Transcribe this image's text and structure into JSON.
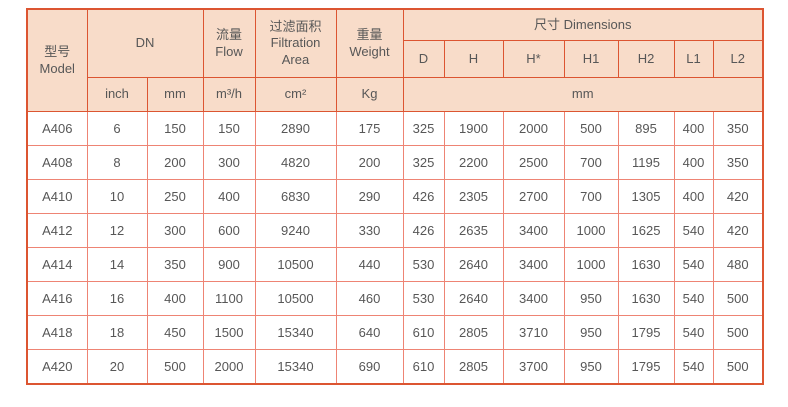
{
  "colors": {
    "page_bg": "#ffffff",
    "header_bg": "#f8dcc9",
    "header_border": "#dc5531",
    "data_border": "#ee8474",
    "text": "#575757"
  },
  "header": {
    "model_zh": "型号",
    "model_en": "Model",
    "dn": "DN",
    "flow_zh": "流量",
    "flow_en": "Flow",
    "filtration_zh": "过滤面积",
    "filtration_en": "Filtration Area",
    "weight_zh": "重量",
    "weight_en": "Weight",
    "dimensions": "尺寸 Dimensions",
    "dim_cols": [
      "D",
      "H",
      "H*",
      "H1",
      "H2",
      "L1",
      "L2"
    ],
    "units": {
      "inch": "inch",
      "mm": "mm",
      "flow": "m³/h",
      "area": "cm²",
      "weight": "Kg",
      "dim_mm": "mm"
    }
  },
  "rows": [
    {
      "model": "A406",
      "inch": "6",
      "mm": "150",
      "flow": "150",
      "area": "2890",
      "weight": "175",
      "d": "325",
      "h": "1900",
      "h_star": "2000",
      "h1": "500",
      "h2": "895",
      "l1": "400",
      "l2": "350"
    },
    {
      "model": "A408",
      "inch": "8",
      "mm": "200",
      "flow": "300",
      "area": "4820",
      "weight": "200",
      "d": "325",
      "h": "2200",
      "h_star": "2500",
      "h1": "700",
      "h2": "1195",
      "l1": "400",
      "l2": "350"
    },
    {
      "model": "A410",
      "inch": "10",
      "mm": "250",
      "flow": "400",
      "area": "6830",
      "weight": "290",
      "d": "426",
      "h": "2305",
      "h_star": "2700",
      "h1": "700",
      "h2": "1305",
      "l1": "400",
      "l2": "420"
    },
    {
      "model": "A412",
      "inch": "12",
      "mm": "300",
      "flow": "600",
      "area": "9240",
      "weight": "330",
      "d": "426",
      "h": "2635",
      "h_star": "3400",
      "h1": "1000",
      "h2": "1625",
      "l1": "540",
      "l2": "420"
    },
    {
      "model": "A414",
      "inch": "14",
      "mm": "350",
      "flow": "900",
      "area": "10500",
      "weight": "440",
      "d": "530",
      "h": "2640",
      "h_star": "3400",
      "h1": "1000",
      "h2": "1630",
      "l1": "540",
      "l2": "480"
    },
    {
      "model": "A416",
      "inch": "16",
      "mm": "400",
      "flow": "1100",
      "area": "10500",
      "weight": "460",
      "d": "530",
      "h": "2640",
      "h_star": "3400",
      "h1": "950",
      "h2": "1630",
      "l1": "540",
      "l2": "500"
    },
    {
      "model": "A418",
      "inch": "18",
      "mm": "450",
      "flow": "1500",
      "area": "15340",
      "weight": "640",
      "d": "610",
      "h": "2805",
      "h_star": "3710",
      "h1": "950",
      "h2": "1795",
      "l1": "540",
      "l2": "500"
    },
    {
      "model": "A420",
      "inch": "20",
      "mm": "500",
      "flow": "2000",
      "area": "15340",
      "weight": "690",
      "d": "610",
      "h": "2805",
      "h_star": "3700",
      "h1": "950",
      "h2": "1795",
      "l1": "540",
      "l2": "500"
    }
  ]
}
